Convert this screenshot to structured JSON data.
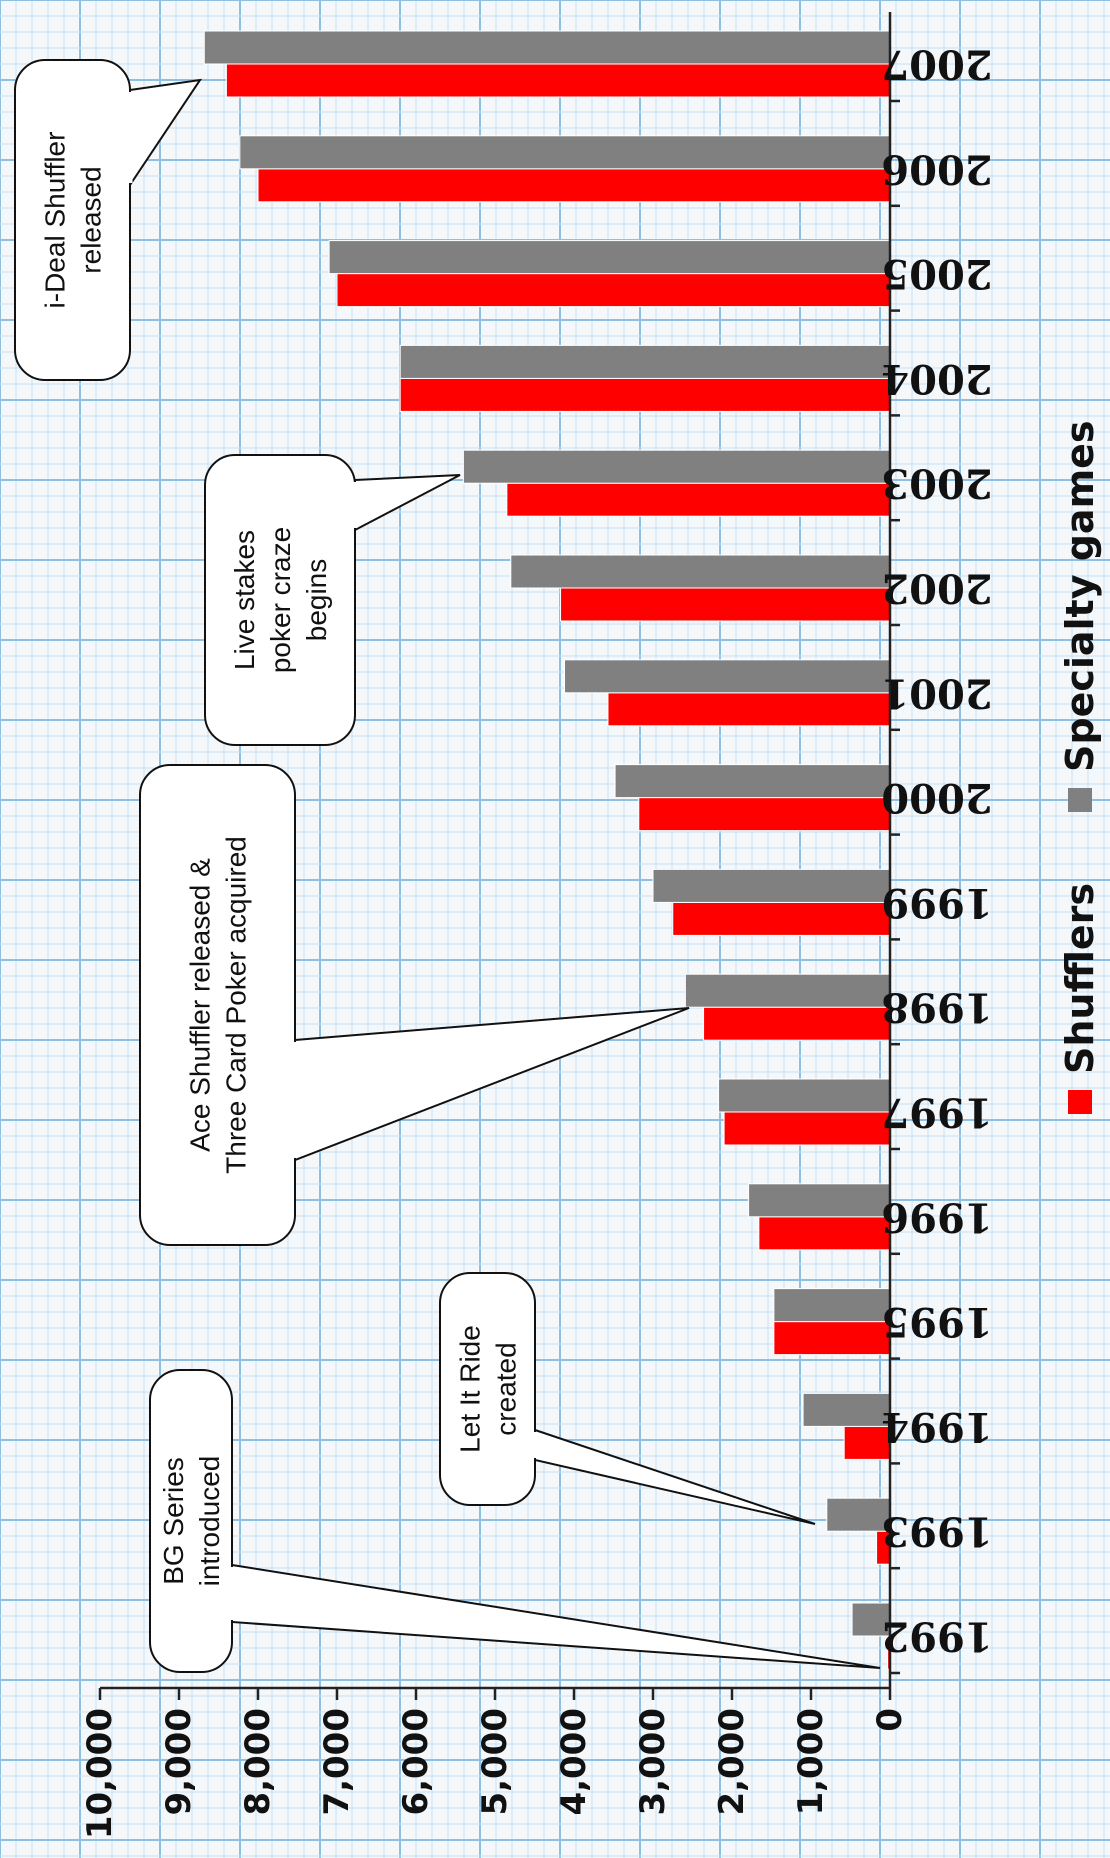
{
  "chart_data": {
    "type": "bar",
    "orientation": "horizontal",
    "categories": [
      "1992",
      "1993",
      "1994",
      "1995",
      "1996",
      "1997",
      "1998",
      "1999",
      "2000",
      "2001",
      "2002",
      "2003",
      "2004",
      "2005",
      "2006",
      "2007"
    ],
    "series": [
      {
        "name": "Shufflers",
        "color": "#ff0000",
        "values": [
          30,
          170,
          580,
          1470,
          1660,
          2100,
          2360,
          2750,
          3180,
          3570,
          4170,
          4850,
          6200,
          7000,
          8000,
          8400
        ]
      },
      {
        "name": "Specialty games",
        "color": "#808080",
        "values": [
          480,
          800,
          1100,
          1470,
          1790,
          2170,
          2590,
          3000,
          3480,
          4120,
          4800,
          5400,
          6200,
          7100,
          8230,
          8680
        ]
      }
    ],
    "xlim": [
      0,
      10000
    ],
    "tick_labels": [
      "0",
      "1,000",
      "2,000",
      "3,000",
      "4,000",
      "5,000",
      "6,000",
      "7,000",
      "8,000",
      "9,000",
      "10,000"
    ],
    "grid": true,
    "legend_position": "bottom"
  },
  "annotations": [
    {
      "id": "bg-series",
      "lines": [
        "BG Series",
        "introduced"
      ]
    },
    {
      "id": "let-it-ride",
      "lines": [
        "Let It Ride",
        "created"
      ]
    },
    {
      "id": "ace-shuffler",
      "lines": [
        "Ace Shuffler released &",
        "Three Card Poker acquired"
      ]
    },
    {
      "id": "live-stakes",
      "lines": [
        "Live stakes",
        "poker craze",
        "begins"
      ]
    },
    {
      "id": "ideal-shuffler",
      "lines": [
        "i-Deal Shuffler",
        "released"
      ]
    }
  ]
}
